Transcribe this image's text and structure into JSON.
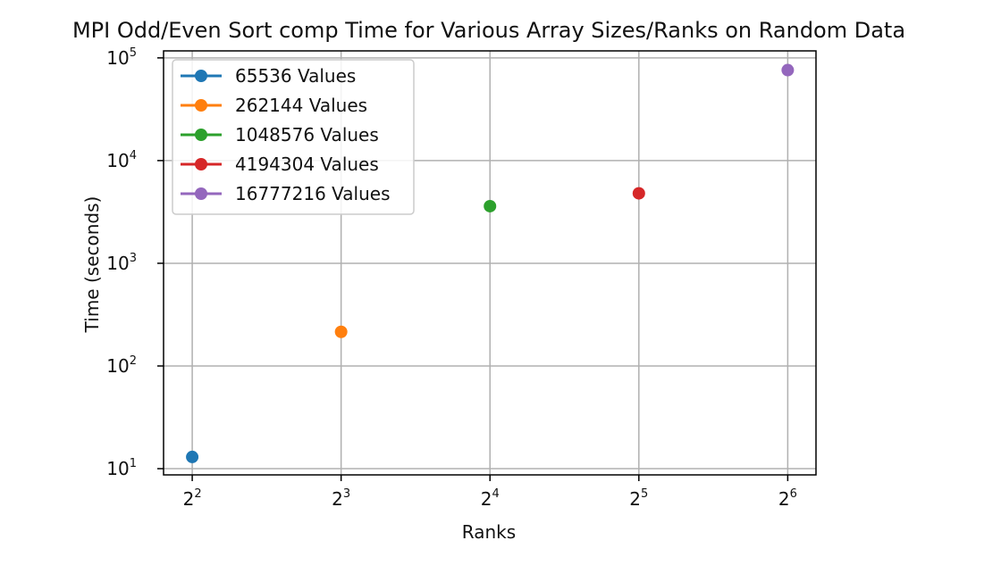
{
  "chart_data": {
    "type": "scatter",
    "title": "MPI Odd/Even Sort comp Time for Various Array Sizes/Ranks on Random Data",
    "xlabel": "Ranks",
    "ylabel": "Time (seconds)",
    "x_scale": "log2",
    "y_scale": "log10",
    "x_ticks": [
      {
        "value": 4,
        "base": "2",
        "exponent": "2"
      },
      {
        "value": 8,
        "base": "2",
        "exponent": "3"
      },
      {
        "value": 16,
        "base": "2",
        "exponent": "4"
      },
      {
        "value": 32,
        "base": "2",
        "exponent": "5"
      },
      {
        "value": 64,
        "base": "2",
        "exponent": "6"
      }
    ],
    "y_ticks": [
      {
        "value": 10,
        "base": "10",
        "exponent": "1"
      },
      {
        "value": 100,
        "base": "10",
        "exponent": "2"
      },
      {
        "value": 1000,
        "base": "10",
        "exponent": "3"
      },
      {
        "value": 10000,
        "base": "10",
        "exponent": "4"
      },
      {
        "value": 100000,
        "base": "10",
        "exponent": "5"
      }
    ],
    "xlim": [
      3.5,
      73
    ],
    "ylim": [
      8.7,
      117000
    ],
    "grid": true,
    "legend_position": "top-left",
    "series": [
      {
        "name": "65536 Values",
        "color": "#1f77b4",
        "x": [
          4
        ],
        "y": [
          13
        ]
      },
      {
        "name": "262144 Values",
        "color": "#ff7f0e",
        "x": [
          8
        ],
        "y": [
          215
        ]
      },
      {
        "name": "1048576 Values",
        "color": "#2ca02c",
        "x": [
          16
        ],
        "y": [
          3600
        ]
      },
      {
        "name": "4194304 Values",
        "color": "#d62728",
        "x": [
          32
        ],
        "y": [
          4800
        ]
      },
      {
        "name": "16777216 Values",
        "color": "#9467bd",
        "x": [
          64
        ],
        "y": [
          76000
        ]
      }
    ]
  }
}
